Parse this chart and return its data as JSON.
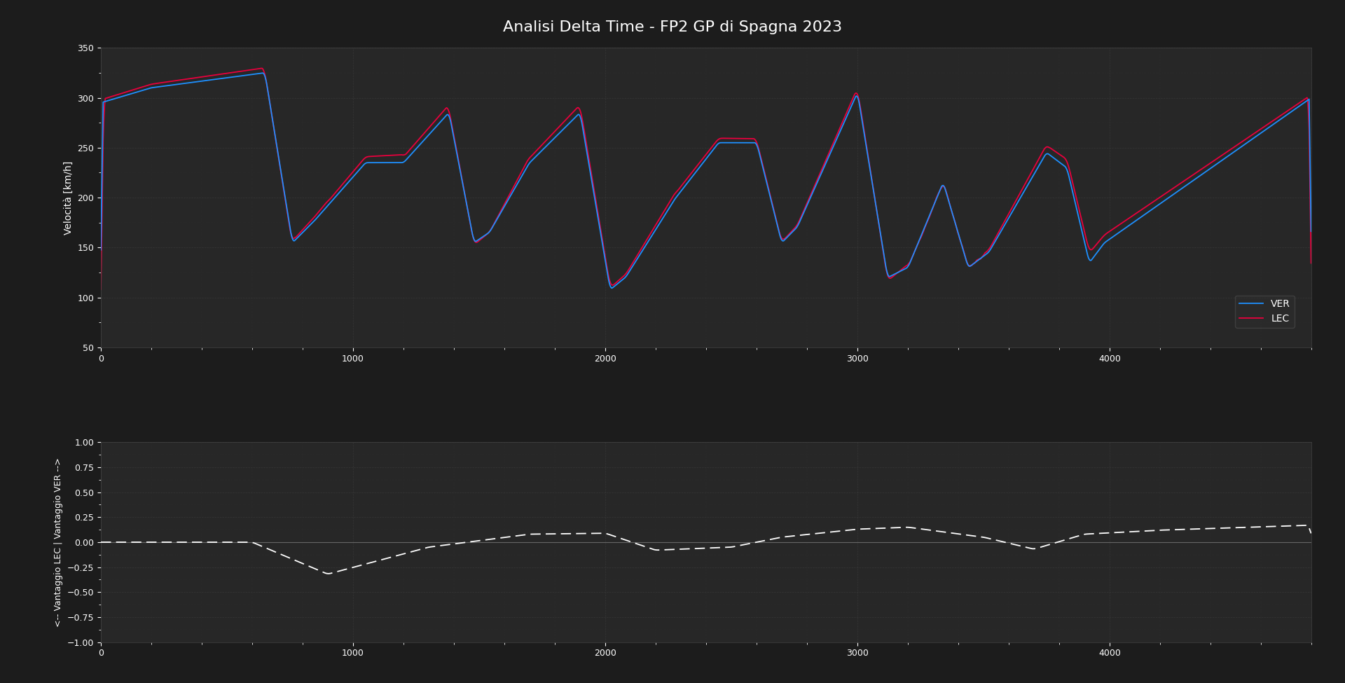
{
  "title": "Analisi Delta Time - FP2 GP di Spagna 2023",
  "title_fontsize": 16,
  "background_color": "#1c1c1c",
  "axes_facecolor": "#272727",
  "grid_color": "#3a3a3a",
  "text_color": "#ffffff",
  "ver_color": "#1e90ff",
  "lec_color": "#e8003d",
  "delta_color": "#ffffff",
  "ylabel_speed": "Velocità [km/h]",
  "ylabel_delta": "<-- Vantaggio LEC | Vantaggio VER -->",
  "ylim_speed": [
    50,
    350
  ],
  "ylim_delta": [
    -1.0,
    1.0
  ],
  "xlim": [
    0,
    4800
  ],
  "yticks_speed": [
    50,
    100,
    150,
    200,
    250,
    300,
    350
  ],
  "yticks_delta": [
    -1.0,
    -0.75,
    -0.5,
    -0.25,
    0.0,
    0.25,
    0.5,
    0.75,
    1.0
  ],
  "xticks": [
    0,
    1000,
    2000,
    3000,
    4000
  ]
}
